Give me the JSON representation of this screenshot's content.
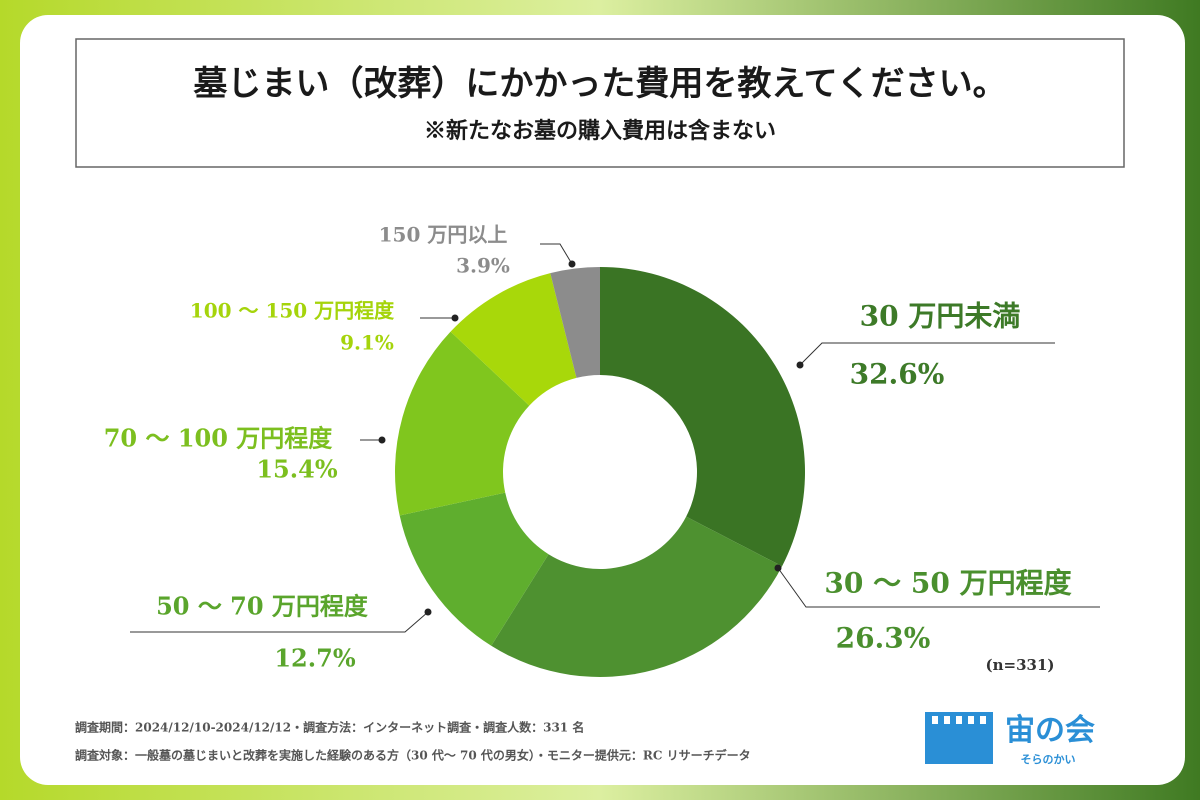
{
  "chart_data": {
    "type": "pie",
    "donut": true,
    "title": "墓じまい（改葬）にかかった費用を教えてください。",
    "subtitle": "※新たなお墓の購入費用は含まない",
    "categories": [
      "30 万円未満",
      "30 ～ 50 万円程度",
      "50 ～ 70 万円程度",
      "70 ～ 100 万円程度",
      "100 ～ 150 万円程度",
      "150 万円以上"
    ],
    "values": [
      32.6,
      26.3,
      12.7,
      15.4,
      9.1,
      3.9
    ],
    "value_labels": [
      "32.6%",
      "26.3%",
      "12.7%",
      "15.4%",
      "9.1%",
      "3.9%"
    ],
    "colors": [
      "#3a7424",
      "#4e9130",
      "#5fae2e",
      "#80c61e",
      "#a8d80a",
      "#8c8c8c"
    ],
    "label_colors": [
      "#3d7a28",
      "#4a8f2e",
      "#5aa52c",
      "#7cbf1f",
      "#a5d40b",
      "#8c8c8c"
    ],
    "annotations": [
      "(n=331)"
    ]
  },
  "footer": [
    "調査期間：2024/12/10-2024/12/12・調査方法：インターネット調査・調査人数：331 名",
    "調査対象：一般墓の墓じまいと改葬を実施した経験のある方（30 代～ 70 代の男女）・モニター提供元：RC リサーチデータ"
  ],
  "logo": {
    "name": "宙の会",
    "reading": "そらのかい"
  }
}
